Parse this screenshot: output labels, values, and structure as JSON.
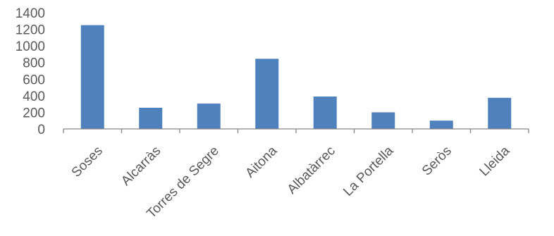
{
  "chart_data": {
    "type": "bar",
    "title": "",
    "xlabel": "",
    "ylabel": "",
    "categories": [
      "Soses",
      "Alcarràs",
      "Torres de Segre",
      "Aitona",
      "Albatàrrec",
      "La Portella",
      "Seròs",
      "Lleida"
    ],
    "values": [
      1250,
      255,
      305,
      845,
      390,
      200,
      100,
      375
    ],
    "ylim": [
      0,
      1400
    ],
    "yticks": [
      "0",
      "200",
      "400",
      "600",
      "800",
      "1000",
      "1200",
      "1400"
    ],
    "grid": false,
    "legend": "none",
    "bar_color": "#4f81bd",
    "axis_color": "#868686",
    "text_color": "#595959"
  }
}
